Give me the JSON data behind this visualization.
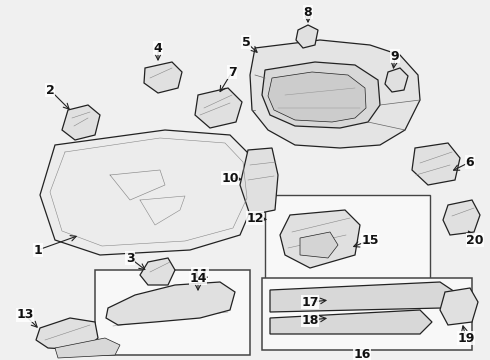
{
  "bg_color": "#ffffff",
  "figure_bg": "#f0f0f0",
  "edge_color": "#222222",
  "lw_main": 0.9,
  "lw_thin": 0.5,
  "label_fontsize": 9,
  "arrow_color": "#111111"
}
